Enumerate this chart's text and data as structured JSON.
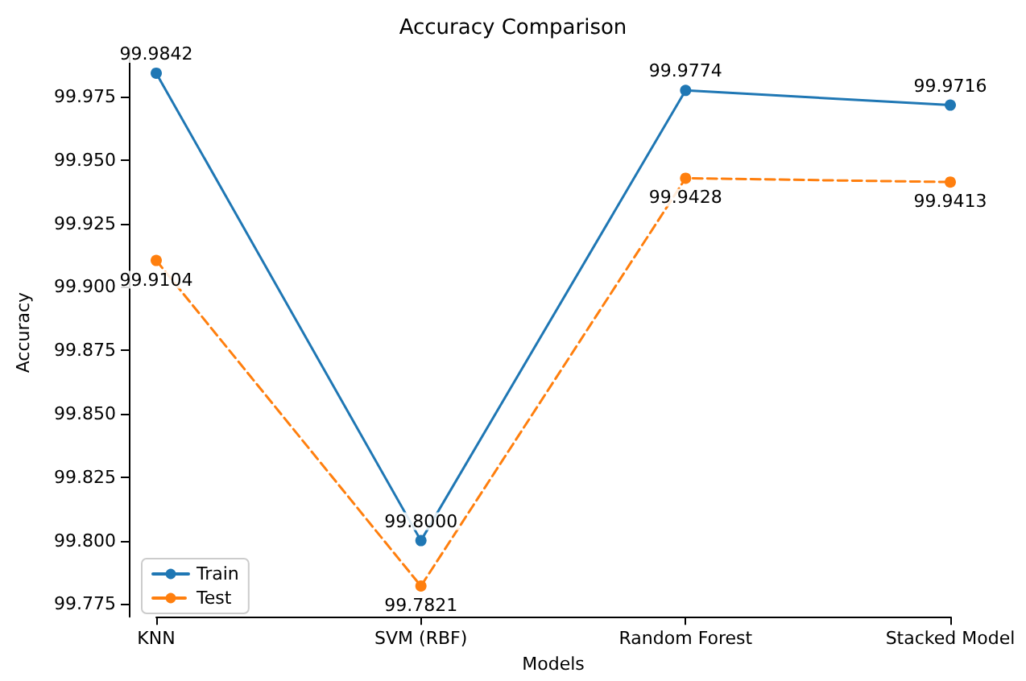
{
  "chart_data": {
    "type": "line",
    "title": "Accuracy Comparison",
    "xlabel": "Models",
    "ylabel": "Accuracy",
    "categories": [
      "KNN",
      "SVM (RBF)",
      "Random Forest",
      "Stacked Model"
    ],
    "series": [
      {
        "name": "Train",
        "color": "#1f77b4",
        "line_style": "solid",
        "values": [
          99.9842,
          99.8,
          99.9774,
          99.9716
        ],
        "value_labels": [
          "99.9842",
          "99.8000",
          "99.9774",
          "99.9716"
        ]
      },
      {
        "name": "Test",
        "color": "#ff7f0e",
        "line_style": "dashed",
        "values": [
          99.9104,
          99.7821,
          99.9428,
          99.9413
        ],
        "value_labels": [
          "99.9104",
          "99.7821",
          "99.9428",
          "99.9413"
        ]
      }
    ],
    "ylim": [
      99.77,
      99.994
    ],
    "yticks": [
      99.775,
      {
        "value": 99.8,
        "label": "99.800"
      },
      99.825,
      {
        "value": 99.85,
        "label": "99.850"
      },
      99.875,
      {
        "value": 99.9,
        "label": "99.900"
      },
      99.925,
      {
        "value": 99.95,
        "label": "99.950"
      },
      99.975
    ],
    "grid": false,
    "legend": "bottom left",
    "marker": "circle"
  }
}
